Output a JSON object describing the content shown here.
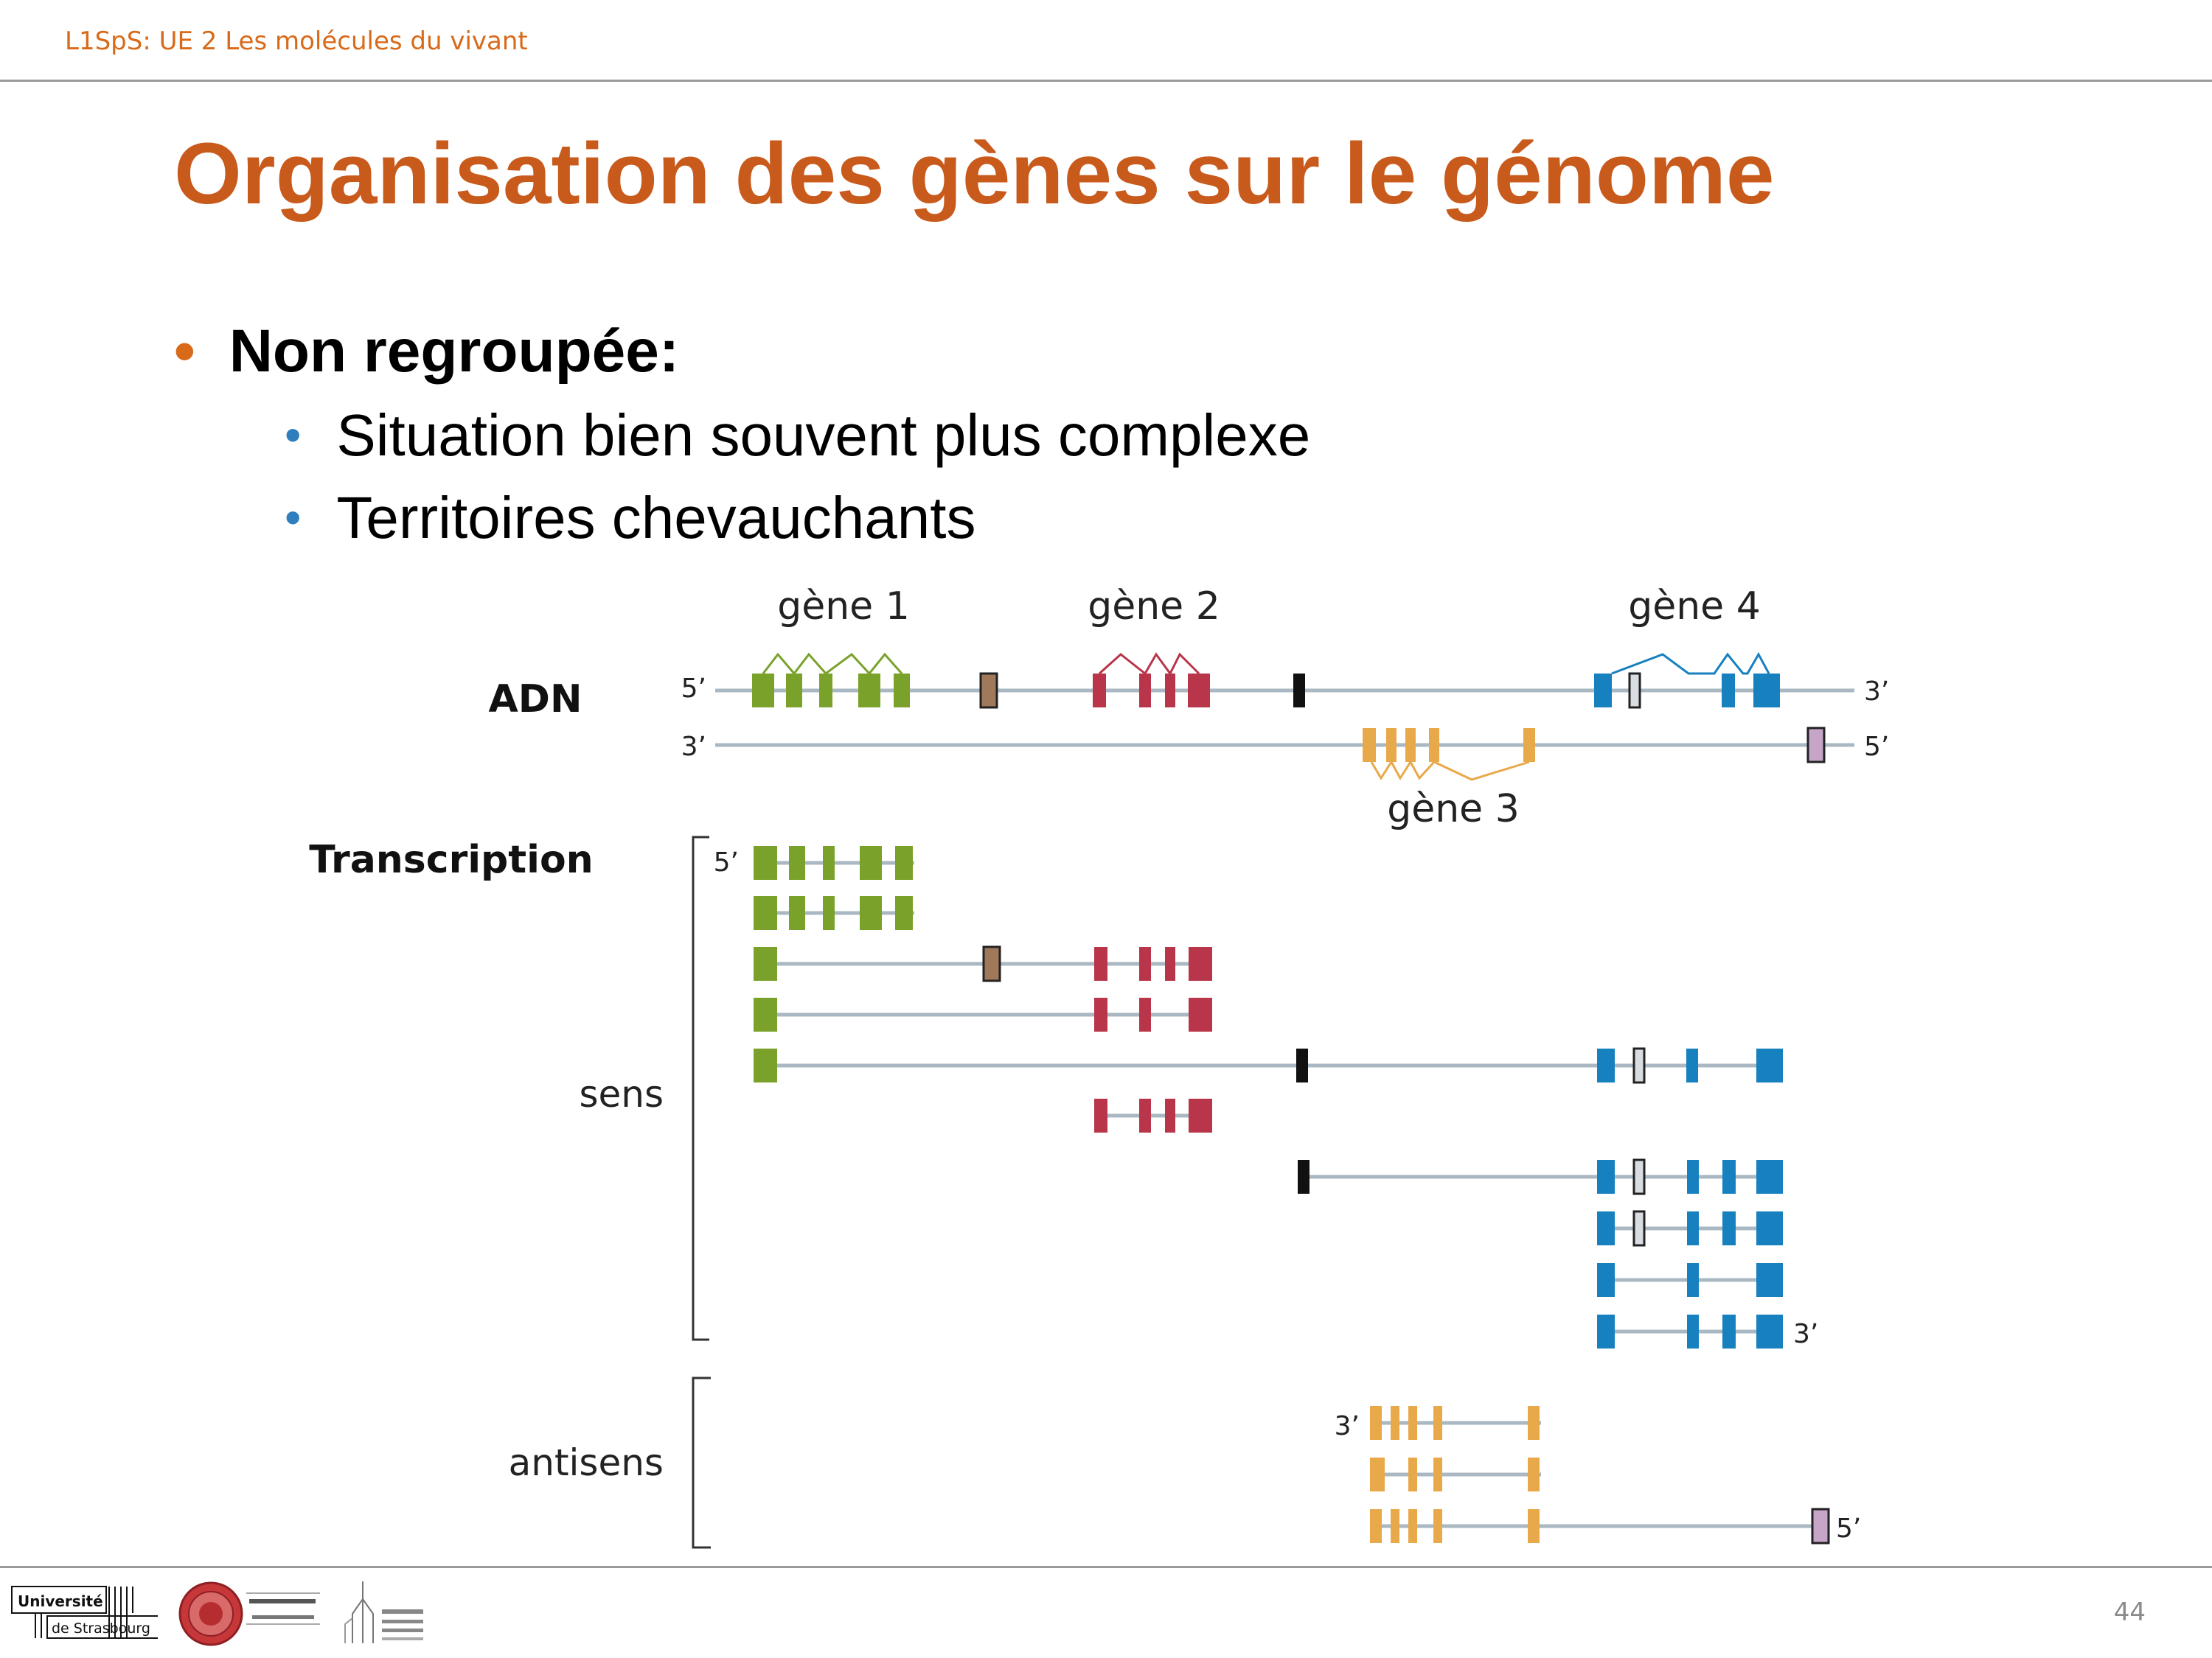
{
  "header": {
    "label": "L1SpS: UE 2 Les molécules du vivant"
  },
  "title": "Organisation des gènes sur le génome",
  "bullets": {
    "main": "Non regroupée:",
    "sub": [
      "Situation bien souvent plus complexe",
      "Territoires chevauchants"
    ]
  },
  "diagram": {
    "gene_labels": [
      "gène 1",
      "gène 2",
      "gène 3",
      "gène 4"
    ],
    "section_adn": "ADN",
    "section_transcription": "Transcription",
    "label_sens": "sens",
    "label_antisens": "antisens",
    "strand_end_5": "5’",
    "strand_end_3": "3’",
    "colors": {
      "gene1": "#7aa22a",
      "gene2": "#b8354a",
      "gene3": "#e8a94a",
      "gene4": "#1780bf",
      "brown_exon": "#a0785a",
      "black_exon": "#111111",
      "pink_exon": "#c7a5c9",
      "strand": "#a9b8c2"
    }
  },
  "footer": {
    "page_number": "44",
    "logo_univ_line1": "Université",
    "logo_univ_line2": "de Strasbourg"
  }
}
